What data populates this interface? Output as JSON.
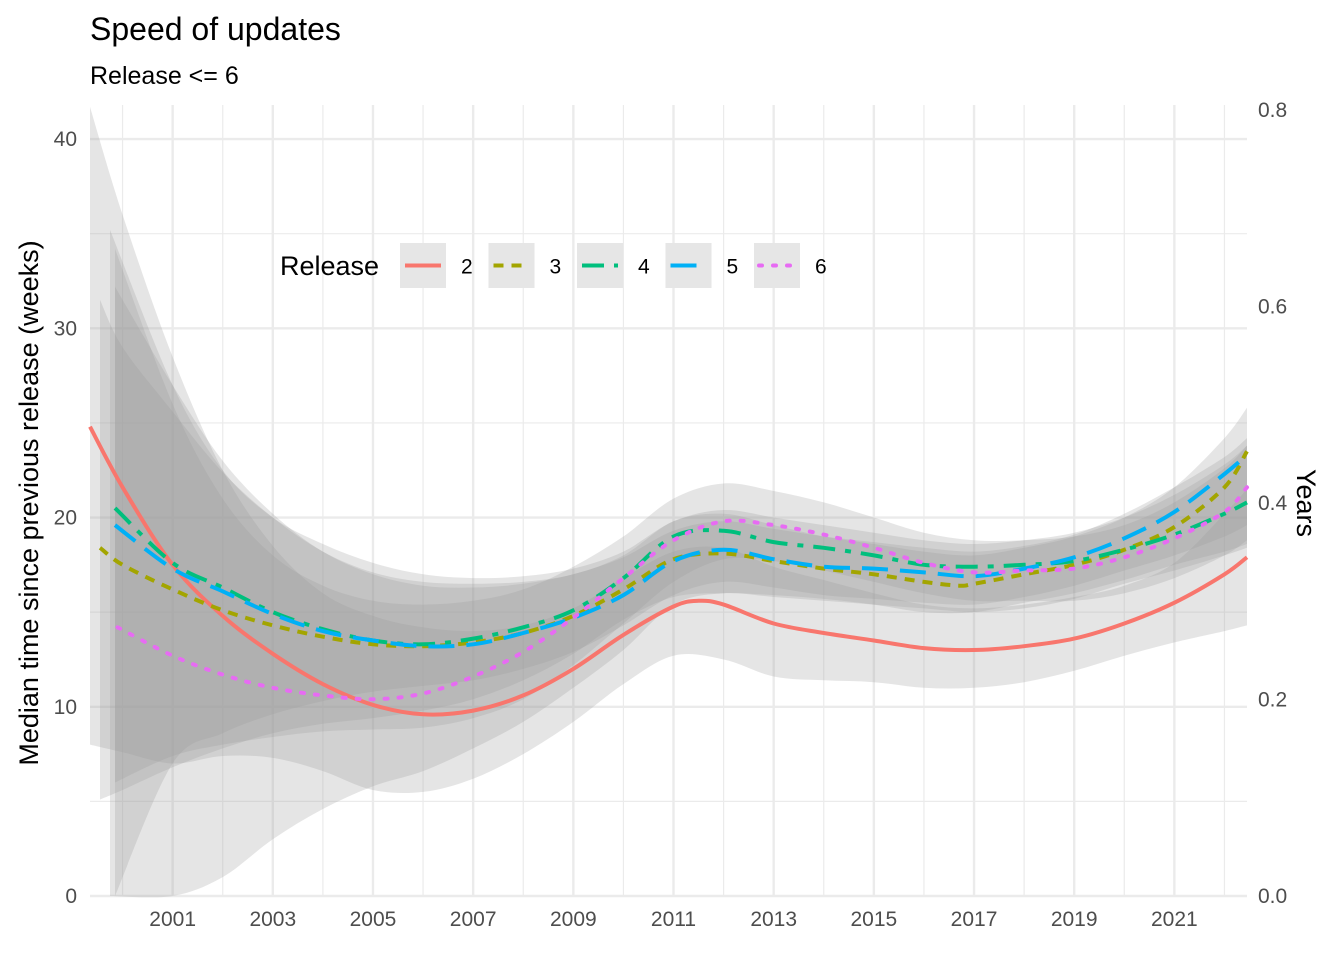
{
  "chart_data": {
    "type": "line",
    "title": "Speed of updates",
    "subtitle": "Release <= 6",
    "ylabel": "Median time since previous release (weeks)",
    "y2label": "Years",
    "xlim": [
      1999.35,
      2022.45
    ],
    "ylim": [
      0,
      40
    ],
    "y2lim": [
      0,
      0.8
    ],
    "xticks": [
      "2001",
      "2003",
      "2005",
      "2007",
      "2009",
      "2011",
      "2013",
      "2015",
      "2017",
      "2019",
      "2021"
    ],
    "yticks": [
      "0",
      "10",
      "20",
      "30",
      "40"
    ],
    "y2ticks": [
      "0.0",
      "0.2",
      "0.4",
      "0.6",
      "0.8"
    ],
    "grid": true,
    "legend": {
      "title": "Release",
      "placement": "top-center",
      "items": [
        "2",
        "3",
        "4",
        "5",
        "6"
      ]
    },
    "series": [
      {
        "name": "2",
        "color": "#F8766D",
        "dash": "solid",
        "x": [
          1999.35,
          2000,
          2001,
          2002,
          2003,
          2004,
          2005,
          2006,
          2007,
          2008,
          2009,
          2010,
          2011,
          2011.5,
          2012,
          2013,
          2014,
          2015,
          2016,
          2017,
          2018,
          2019,
          2020,
          2021,
          2022,
          2022.45
        ],
        "y": [
          24.8,
          21.6,
          17.5,
          14.8,
          12.8,
          11.2,
          10.1,
          9.6,
          9.8,
          10.6,
          12.0,
          13.8,
          15.3,
          15.6,
          15.4,
          14.4,
          13.9,
          13.5,
          13.1,
          13.0,
          13.2,
          13.6,
          14.4,
          15.5,
          17.0,
          17.9
        ]
      },
      {
        "name": "3",
        "color": "#A3A500",
        "dash": "short",
        "x": [
          1999.55,
          2000,
          2001,
          2002,
          2003,
          2004,
          2005,
          2006,
          2007,
          2008,
          2009,
          2010,
          2011,
          2012,
          2013,
          2014,
          2015,
          2016,
          2016.7,
          2017,
          2018,
          2019,
          2020,
          2021,
          2022,
          2022.45
        ],
        "y": [
          18.4,
          17.5,
          16.2,
          15.1,
          14.3,
          13.7,
          13.3,
          13.2,
          13.4,
          13.9,
          14.8,
          16.2,
          17.8,
          18.1,
          17.7,
          17.3,
          17.0,
          16.6,
          16.4,
          16.5,
          17.0,
          17.5,
          18.3,
          19.5,
          21.6,
          23.5
        ]
      },
      {
        "name": "4",
        "color": "#00BF7D",
        "dash": "long",
        "x": [
          1999.85,
          2001,
          2002,
          2003,
          2004,
          2005,
          2006,
          2007,
          2008,
          2009,
          2010,
          2011,
          2012,
          2013,
          2014,
          2015,
          2016,
          2017,
          2018,
          2019,
          2020,
          2021,
          2022,
          2022.45
        ],
        "y": [
          20.5,
          17.6,
          16.3,
          15.0,
          14.1,
          13.5,
          13.3,
          13.6,
          14.2,
          15.1,
          16.8,
          19.0,
          19.3,
          18.7,
          18.4,
          18.0,
          17.5,
          17.4,
          17.5,
          17.7,
          18.3,
          19.1,
          20.2,
          20.8
        ]
      },
      {
        "name": "5",
        "color": "#00B0F6",
        "dash": "longer",
        "x": [
          1999.85,
          2001,
          2002,
          2003,
          2004,
          2005,
          2006,
          2007,
          2008,
          2009,
          2010,
          2011,
          2012,
          2013,
          2014,
          2015,
          2016,
          2017,
          2018,
          2019,
          2020,
          2021,
          2022,
          2022.45
        ],
        "y": [
          19.6,
          17.3,
          16.1,
          14.9,
          14.0,
          13.5,
          13.2,
          13.3,
          13.9,
          14.7,
          15.9,
          17.7,
          18.3,
          17.8,
          17.4,
          17.3,
          17.1,
          16.9,
          17.3,
          17.9,
          18.9,
          20.3,
          22.3,
          23.3
        ]
      },
      {
        "name": "6",
        "color": "#E76BF3",
        "dash": "dotted",
        "x": [
          1999.9,
          2001,
          2002,
          2003,
          2004,
          2005,
          2006,
          2007,
          2008,
          2009,
          2010,
          2011,
          2012,
          2013,
          2014,
          2015,
          2016,
          2017,
          2018,
          2019,
          2020,
          2021,
          2022,
          2022.45
        ],
        "y": [
          14.2,
          12.7,
          11.7,
          11.0,
          10.6,
          10.4,
          10.7,
          11.6,
          12.9,
          14.7,
          16.8,
          18.8,
          19.8,
          19.6,
          19.1,
          18.4,
          17.6,
          17.1,
          17.2,
          17.3,
          17.9,
          18.9,
          20.3,
          21.6
        ]
      }
    ],
    "confidence_bands": [
      {
        "name": "2",
        "x": [
          1999.35,
          2000,
          2001,
          2002,
          2003,
          2004,
          2005,
          2006,
          2007,
          2008,
          2009,
          2010,
          2011,
          2012,
          2013,
          2014,
          2015,
          2016,
          2017,
          2018,
          2019,
          2020,
          2021,
          2022,
          2022.45
        ],
        "lo": [
          8.0,
          7.6,
          7.0,
          7.4,
          7.3,
          6.6,
          5.6,
          5.5,
          6.2,
          7.5,
          9.2,
          11.2,
          12.7,
          12.5,
          11.6,
          11.4,
          11.3,
          11.0,
          11.0,
          11.3,
          11.9,
          12.7,
          13.4,
          14.0,
          14.3
        ],
        "hi": [
          41.7,
          36.0,
          28.5,
          22.5,
          18.5,
          16.0,
          14.8,
          14.2,
          14.0,
          14.3,
          15.2,
          16.8,
          18.2,
          18.4,
          17.4,
          16.7,
          16.0,
          15.4,
          15.2,
          15.4,
          15.8,
          16.4,
          17.6,
          20.2,
          21.5
        ]
      },
      {
        "name": "3",
        "x": [
          1999.55,
          2000,
          2001,
          2002,
          2003,
          2004,
          2005,
          2006,
          2007,
          2008,
          2009,
          2010,
          2011,
          2012,
          2013,
          2014,
          2015,
          2016,
          2017,
          2018,
          2019,
          2020,
          2021,
          2022,
          2022.45
        ],
        "lo": [
          5.1,
          5.6,
          6.8,
          7.8,
          8.6,
          9.1,
          9.4,
          9.8,
          10.4,
          11.4,
          12.8,
          14.6,
          15.8,
          16.0,
          15.9,
          15.7,
          15.4,
          15.0,
          15.0,
          15.5,
          16.0,
          16.7,
          17.5,
          18.2,
          18.6
        ],
        "hi": [
          31.5,
          29.0,
          25.6,
          22.4,
          20.0,
          18.2,
          17.1,
          16.6,
          16.5,
          16.6,
          17.0,
          18.0,
          19.8,
          20.2,
          19.6,
          19.0,
          18.6,
          18.2,
          18.0,
          18.4,
          19.0,
          20.0,
          21.6,
          24.2,
          25.8
        ]
      },
      {
        "name": "4",
        "x": [
          1999.75,
          2001,
          2002,
          2003,
          2004,
          2005,
          2006,
          2007,
          2008,
          2009,
          2010,
          2011,
          2012,
          2013,
          2014,
          2015,
          2016,
          2017,
          2018,
          2019,
          2020,
          2021,
          2022,
          2022.45
        ],
        "lo": [
          0,
          -2.0,
          1.0,
          3.0,
          4.6,
          5.8,
          6.6,
          7.8,
          9.2,
          11.0,
          13.0,
          15.4,
          16.0,
          15.8,
          15.6,
          15.4,
          15.2,
          15.0,
          15.2,
          15.7,
          16.5,
          17.2,
          18.0,
          18.4
        ],
        "hi": [
          35.2,
          27.0,
          22.5,
          20.0,
          18.6,
          17.6,
          17.0,
          16.8,
          16.9,
          17.3,
          18.2,
          19.8,
          20.4,
          20.0,
          19.6,
          19.2,
          18.8,
          18.6,
          18.8,
          19.2,
          20.0,
          21.2,
          22.8,
          23.8
        ]
      },
      {
        "name": "5",
        "x": [
          1999.85,
          2001,
          2002,
          2003,
          2004,
          2005,
          2006,
          2007,
          2008,
          2009,
          2010,
          2011,
          2012,
          2013,
          2014,
          2015,
          2016,
          2017,
          2018,
          2019,
          2020,
          2021,
          2022,
          2022.45
        ],
        "lo": [
          0,
          7.0,
          8.6,
          9.6,
          10.3,
          10.8,
          11.1,
          11.4,
          12.0,
          12.9,
          14.3,
          15.9,
          16.6,
          16.3,
          15.9,
          15.7,
          15.5,
          15.4,
          15.8,
          16.4,
          17.2,
          18.0,
          19.0,
          19.6
        ],
        "hi": [
          32.2,
          27.0,
          23.0,
          20.2,
          18.2,
          17.0,
          16.4,
          16.3,
          16.5,
          17.0,
          17.9,
          19.3,
          19.8,
          19.4,
          19.0,
          18.7,
          18.4,
          18.2,
          18.5,
          19.1,
          20.2,
          21.6,
          23.2,
          24.2
        ]
      },
      {
        "name": "6",
        "x": [
          1999.85,
          2001,
          2002,
          2003,
          2004,
          2005,
          2006,
          2007,
          2008,
          2009,
          2010,
          2011,
          2012,
          2013,
          2014,
          2015,
          2016,
          2017,
          2018,
          2019,
          2020,
          2021,
          2022,
          2022.45
        ],
        "lo": [
          6.0,
          7.4,
          8.0,
          8.4,
          8.7,
          8.8,
          8.9,
          9.4,
          10.4,
          12.2,
          14.4,
          16.6,
          17.8,
          17.7,
          17.2,
          16.6,
          16.0,
          15.6,
          15.6,
          15.6,
          16.0,
          16.8,
          18.0,
          18.8
        ],
        "hi": [
          34.2,
          26.0,
          21.0,
          18.0,
          16.4,
          15.6,
          15.4,
          15.6,
          16.2,
          17.4,
          19.0,
          21.0,
          21.8,
          21.4,
          20.8,
          20.0,
          19.2,
          18.8,
          18.8,
          19.0,
          19.6,
          20.8,
          22.6,
          23.8
        ]
      }
    ]
  }
}
